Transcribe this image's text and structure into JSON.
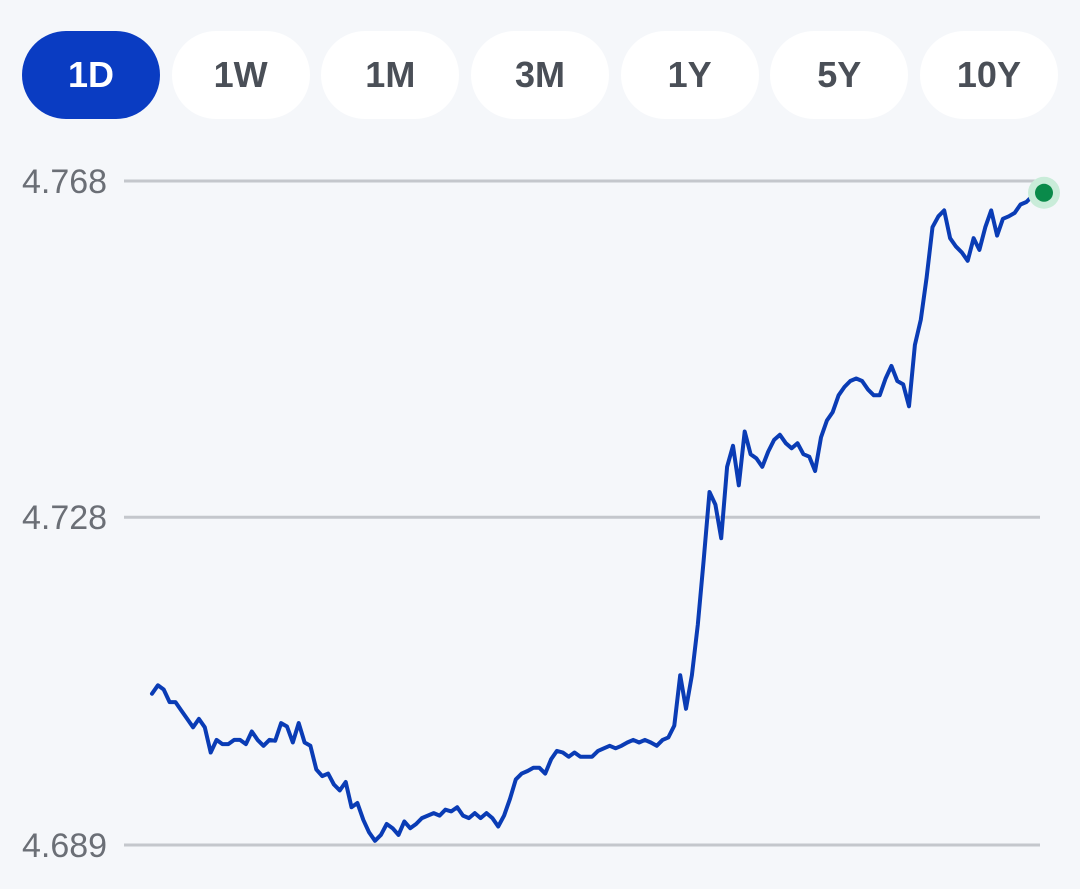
{
  "timeframe_tabs": [
    {
      "label": "1D",
      "active": true
    },
    {
      "label": "1W",
      "active": false
    },
    {
      "label": "1M",
      "active": false
    },
    {
      "label": "3M",
      "active": false
    },
    {
      "label": "1Y",
      "active": false
    },
    {
      "label": "5Y",
      "active": false
    },
    {
      "label": "10Y",
      "active": false
    }
  ],
  "colors": {
    "accent": "#0a3cc2",
    "line": "#0a3cb5",
    "gridline": "#c4c7cc",
    "last_point": "#0a8a4a",
    "last_point_halo": "#c9ecd9"
  },
  "chart_data": {
    "type": "line",
    "title": "",
    "xlabel": "",
    "ylabel": "",
    "y_ticks": [
      "4.768",
      "4.728",
      "4.689"
    ],
    "ylim": [
      4.689,
      4.768
    ],
    "grid": true,
    "legend": "none",
    "series": [
      {
        "values": [
          4.707,
          4.708,
          4.7075,
          4.706,
          4.706,
          4.705,
          4.704,
          4.703,
          4.704,
          4.703,
          4.7,
          4.7015,
          4.701,
          4.701,
          4.7015,
          4.7015,
          4.701,
          4.7025,
          4.7015,
          4.7008,
          4.7015,
          4.7014,
          4.7035,
          4.7031,
          4.7012,
          4.7035,
          4.7012,
          4.7008,
          4.698,
          4.6972,
          4.6975,
          4.6962,
          4.6955,
          4.6965,
          4.6935,
          4.694,
          4.692,
          4.6905,
          4.6895,
          4.6902,
          4.6915,
          4.691,
          4.6902,
          4.6918,
          4.691,
          4.6915,
          4.6922,
          4.6925,
          4.6928,
          4.6925,
          4.6932,
          4.693,
          4.6935,
          4.6925,
          4.6922,
          4.6928,
          4.6922,
          4.6928,
          4.6922,
          4.6912,
          4.6925,
          4.6945,
          4.6968,
          4.6975,
          4.6978,
          4.6982,
          4.6982,
          4.6975,
          4.6992,
          4.7002,
          4.7,
          4.6995,
          4.7,
          4.6995,
          4.6995,
          4.6995,
          4.7002,
          4.7005,
          4.7008,
          4.7005,
          4.7008,
          4.7012,
          4.7015,
          4.7012,
          4.7015,
          4.7012,
          4.7008,
          4.7015,
          4.7018,
          4.7032,
          4.7092,
          4.7052,
          4.7092,
          4.7152,
          4.7228,
          4.731,
          4.7295,
          4.7255,
          4.734,
          4.7365,
          4.7318,
          4.7382,
          4.7355,
          4.735,
          4.734,
          4.7358,
          4.7372,
          4.7378,
          4.7368,
          4.7362,
          4.7368,
          4.7355,
          4.7352,
          4.7335,
          4.7375,
          4.7395,
          4.7405,
          4.7425,
          4.7435,
          4.7442,
          4.7445,
          4.7442,
          4.7432,
          4.7425,
          4.7425,
          4.7445,
          4.746,
          4.7442,
          4.7438,
          4.7412,
          4.7485,
          4.7515,
          4.7565,
          4.7625,
          4.7638,
          4.7645,
          4.7612,
          4.7602,
          4.7595,
          4.7585,
          4.7612,
          4.7598,
          4.7625,
          4.7645,
          4.7615,
          4.7635,
          4.7638,
          4.7642,
          4.7652,
          4.7655,
          4.7662,
          4.7662,
          4.7666
        ]
      }
    ]
  }
}
